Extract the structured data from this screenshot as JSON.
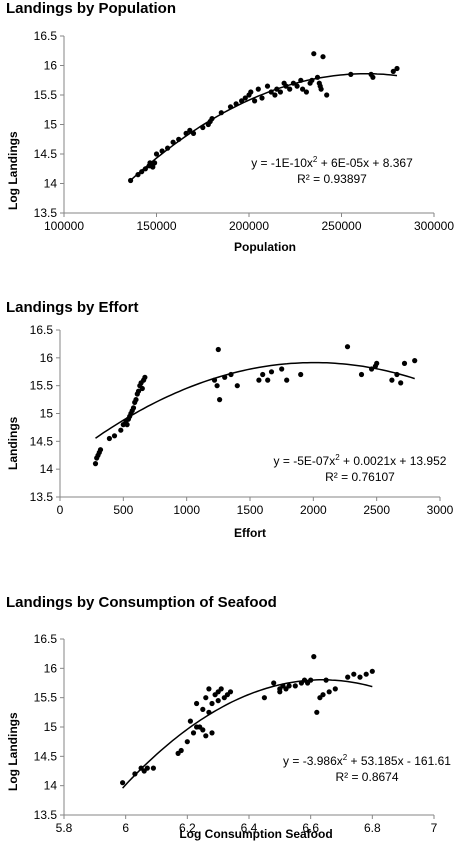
{
  "chart_data": [
    {
      "type": "scatter",
      "title": "Landings by Population",
      "xlabel": "Population",
      "ylabel": "Log Landings",
      "xlim": [
        100000,
        300000
      ],
      "ylim": [
        13.5,
        16.5
      ],
      "xticks": [
        "100000",
        "150000",
        "200000",
        "250000",
        "300000"
      ],
      "yticks": [
        "13.5",
        "14",
        "14.5",
        "15",
        "15.5",
        "16",
        "16.5"
      ],
      "trendline": {
        "type": "polynomial",
        "degree": 2
      },
      "equation": {
        "prefix": "y = -1E-10x",
        "suffix": " + 6E-05x + 8.367",
        "r2": "R² = 0.93897"
      },
      "series": [
        {
          "x": [
            136000,
            140000,
            142000,
            144000,
            146000,
            146500,
            147000,
            148000,
            149000,
            150000,
            153000,
            156000,
            159000,
            162000,
            166000,
            168000,
            170000,
            175000,
            178000,
            179000,
            180000,
            185000,
            190000,
            193000,
            196000,
            198000,
            200000,
            201000,
            203000,
            205000,
            207000,
            210000,
            212000,
            214000,
            215000,
            217000,
            219000,
            220000,
            222000,
            224000,
            226000,
            228000,
            229000,
            231000,
            233000,
            234000,
            235000,
            237000,
            238000,
            238500,
            239000,
            240000,
            242000,
            255000,
            266000,
            267000,
            278000,
            280000
          ],
          "y": [
            14.05,
            14.15,
            14.2,
            14.25,
            14.3,
            14.35,
            14.3,
            14.28,
            14.35,
            14.5,
            14.55,
            14.6,
            14.7,
            14.75,
            14.85,
            14.9,
            14.85,
            14.95,
            15.0,
            15.05,
            15.1,
            15.2,
            15.3,
            15.35,
            15.4,
            15.45,
            15.5,
            15.55,
            15.4,
            15.6,
            15.45,
            15.65,
            15.55,
            15.5,
            15.6,
            15.55,
            15.7,
            15.65,
            15.6,
            15.7,
            15.65,
            15.75,
            15.6,
            15.55,
            15.7,
            15.75,
            16.2,
            15.8,
            15.7,
            15.65,
            15.6,
            16.15,
            15.5,
            15.85,
            15.85,
            15.8,
            15.9,
            15.95
          ]
        }
      ]
    },
    {
      "type": "scatter",
      "title": "Landings by Effort",
      "xlabel": "Effort",
      "ylabel": "Landings",
      "xlim": [
        0,
        3000
      ],
      "ylim": [
        13.5,
        16.5
      ],
      "xticks": [
        "0",
        "500",
        "1000",
        "1500",
        "2000",
        "2500",
        "3000"
      ],
      "yticks": [
        "13.5",
        "14",
        "14.5",
        "15",
        "15.5",
        "16",
        "16.5"
      ],
      "trendline": {
        "type": "polynomial",
        "degree": 2
      },
      "equation": {
        "prefix": "y = -5E-07x",
        "suffix": " + 0.0021x + 13.952",
        "r2": "R² = 0.76107"
      },
      "series": [
        {
          "x": [
            280,
            290,
            300,
            310,
            320,
            390,
            430,
            480,
            500,
            520,
            530,
            540,
            550,
            560,
            570,
            580,
            590,
            600,
            610,
            620,
            630,
            640,
            650,
            660,
            670,
            1220,
            1240,
            1250,
            1260,
            1300,
            1350,
            1400,
            1570,
            1600,
            1640,
            1670,
            1750,
            1790,
            1900,
            2270,
            2380,
            2460,
            2490,
            2500,
            2620,
            2660,
            2690,
            2720,
            2800
          ],
          "y": [
            14.1,
            14.2,
            14.25,
            14.3,
            14.35,
            14.55,
            14.6,
            14.7,
            14.8,
            14.85,
            14.8,
            14.9,
            14.95,
            15.0,
            15.05,
            15.1,
            15.2,
            15.25,
            15.35,
            15.4,
            15.5,
            15.55,
            15.45,
            15.6,
            15.65,
            15.6,
            15.5,
            16.15,
            15.25,
            15.65,
            15.7,
            15.5,
            15.6,
            15.7,
            15.6,
            15.75,
            15.8,
            15.6,
            15.7,
            16.2,
            15.7,
            15.8,
            15.85,
            15.9,
            15.6,
            15.7,
            15.55,
            15.9,
            15.95
          ]
        }
      ]
    },
    {
      "type": "scatter",
      "title": "Landings by Consumption of Seafood",
      "xlabel": "Log Consumption Seafood",
      "ylabel": "Log Landings",
      "xlim": [
        5.8,
        7
      ],
      "ylim": [
        13.5,
        16.5
      ],
      "xticks": [
        "5.8",
        "6",
        "6.2",
        "6.4",
        "6.6",
        "6.8",
        "7"
      ],
      "yticks": [
        "13.5",
        "14",
        "14.5",
        "15",
        "15.5",
        "16",
        "16.5"
      ],
      "trendline": {
        "type": "polynomial",
        "degree": 2
      },
      "equation": {
        "prefix": "y = -3.986x",
        "suffix": " + 53.185x - 161.61",
        "r2": "R² = 0.8674"
      },
      "series": [
        {
          "x": [
            5.99,
            6.03,
            6.05,
            6.06,
            6.07,
            6.09,
            6.17,
            6.18,
            6.2,
            6.21,
            6.22,
            6.23,
            6.23,
            6.24,
            6.25,
            6.25,
            6.26,
            6.26,
            6.27,
            6.27,
            6.28,
            6.28,
            6.29,
            6.3,
            6.3,
            6.31,
            6.32,
            6.33,
            6.34,
            6.45,
            6.48,
            6.5,
            6.5,
            6.51,
            6.52,
            6.53,
            6.55,
            6.57,
            6.58,
            6.59,
            6.6,
            6.61,
            6.62,
            6.63,
            6.64,
            6.65,
            6.66,
            6.68,
            6.72,
            6.74,
            6.76,
            6.78,
            6.8
          ],
          "y": [
            14.05,
            14.2,
            14.3,
            14.25,
            14.3,
            14.3,
            14.55,
            14.6,
            14.75,
            15.1,
            14.9,
            15.0,
            15.4,
            15.0,
            15.3,
            14.95,
            14.85,
            15.5,
            15.65,
            15.25,
            14.9,
            15.4,
            15.55,
            15.6,
            15.45,
            15.65,
            15.5,
            15.55,
            15.6,
            15.5,
            15.75,
            15.6,
            15.65,
            15.7,
            15.65,
            15.7,
            15.7,
            15.75,
            15.8,
            15.75,
            15.8,
            16.2,
            15.25,
            15.5,
            15.55,
            15.8,
            15.6,
            15.65,
            15.85,
            15.9,
            15.85,
            15.9,
            15.95
          ]
        }
      ]
    }
  ]
}
